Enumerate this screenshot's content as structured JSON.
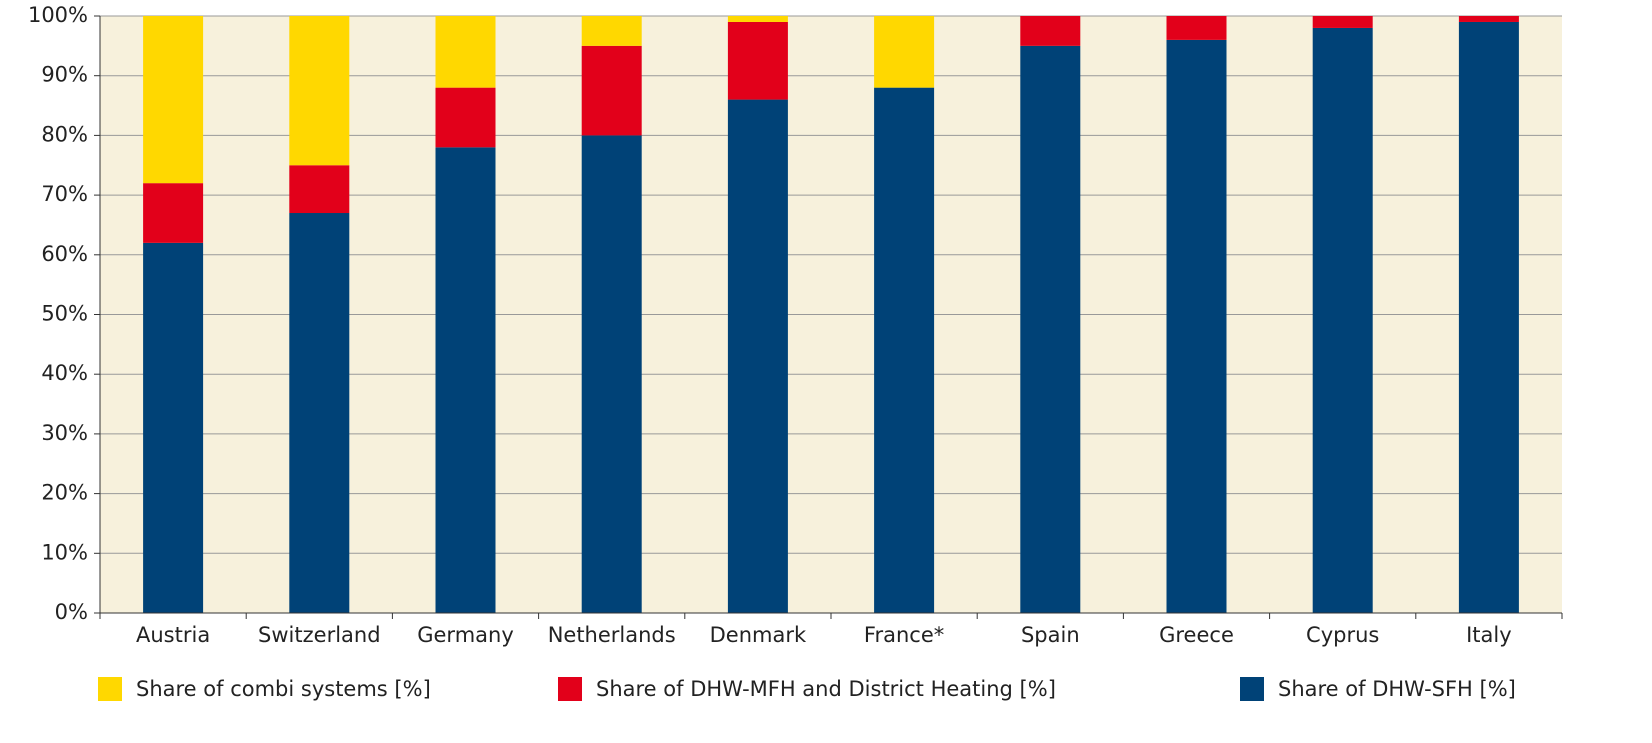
{
  "chart_data": {
    "type": "stacked_bar",
    "categories": [
      "Austria",
      "Switzerland",
      "Germany",
      "Netherlands",
      "Denmark",
      "France*",
      "Spain",
      "Greece",
      "Cyprus",
      "Italy"
    ],
    "series": [
      {
        "name": "Share of combi systems [%]",
        "color": "#ffd800",
        "values": [
          28,
          25,
          12,
          5,
          1,
          12,
          0,
          0,
          0,
          0
        ]
      },
      {
        "name": "Share of DHW-MFH and District Heating [%]",
        "color": "#e2001a",
        "values": [
          10,
          8,
          10,
          15,
          13,
          0,
          5,
          4,
          2,
          1
        ]
      },
      {
        "name": "Share of DHW-SFH [%]",
        "color": "#004277",
        "values": [
          62,
          67,
          78,
          80,
          86,
          88,
          95,
          96,
          98,
          99
        ]
      }
    ],
    "ylim": [
      0,
      100
    ],
    "yticks": [
      {
        "value": 0,
        "label": "0%"
      },
      {
        "value": 10,
        "label": "10%"
      },
      {
        "value": 20,
        "label": "20%"
      },
      {
        "value": 30,
        "label": "30%"
      },
      {
        "value": 40,
        "label": "40%"
      },
      {
        "value": 50,
        "label": "50%"
      },
      {
        "value": 60,
        "label": "60%"
      },
      {
        "value": 70,
        "label": "70%"
      },
      {
        "value": 80,
        "label": "80%"
      },
      {
        "value": 90,
        "label": "90%"
      },
      {
        "value": 100,
        "label": "100%"
      }
    ],
    "grid": true,
    "legend": "bottom"
  }
}
